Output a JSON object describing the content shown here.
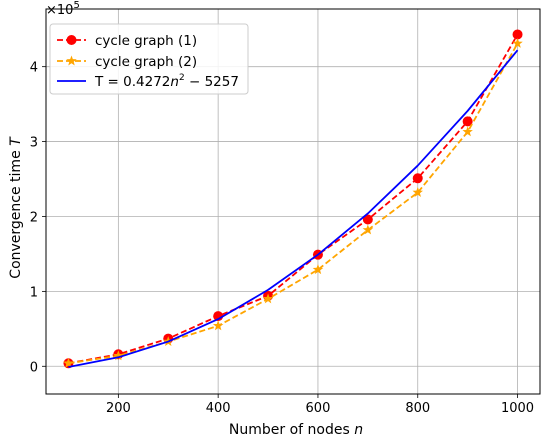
{
  "chart_data": {
    "type": "line",
    "xlabel": "Number of nodes",
    "xlabel_var": "n",
    "ylabel": "Convergence time",
    "ylabel_var": "T",
    "offset_text_base": "×10",
    "offset_text_exp": "5",
    "xlim": [
      55,
      1045
    ],
    "ylim": [
      -0.37,
      4.77
    ],
    "x_ticks": [
      200,
      400,
      600,
      800,
      1000
    ],
    "x_tick_labels": [
      "200",
      "400",
      "600",
      "800",
      "1000"
    ],
    "y_ticks": [
      0,
      1,
      2,
      3,
      4
    ],
    "y_tick_labels": [
      "0",
      "1",
      "2",
      "3",
      "4"
    ],
    "grid": true,
    "legend_position": "top-left",
    "series": [
      {
        "name": "cycle graph (1)",
        "color": "#ff0000",
        "line_style": "dashed",
        "marker": "circle",
        "x": [
          100,
          200,
          300,
          400,
          500,
          600,
          700,
          800,
          900,
          1000
        ],
        "values": [
          0.04,
          0.16,
          0.37,
          0.67,
          0.94,
          1.49,
          1.96,
          2.51,
          3.27,
          4.43
        ]
      },
      {
        "name": "cycle graph (2)",
        "color": "#ffa500",
        "line_style": "dashed",
        "marker": "star",
        "x": [
          100,
          200,
          300,
          400,
          500,
          600,
          700,
          800,
          900,
          1000
        ],
        "values": [
          0.04,
          0.14,
          0.33,
          0.54,
          0.9,
          1.29,
          1.82,
          2.32,
          3.13,
          4.31
        ]
      },
      {
        "name_prefix": "T = 0.4272",
        "name_var": "n",
        "name_exp": "2",
        "name_suffix": " − 5257",
        "color": "#0000ff",
        "line_style": "solid",
        "marker": "none",
        "x": [
          100,
          200,
          300,
          400,
          500,
          600,
          700,
          800,
          900,
          1000
        ],
        "values": [
          -0.01,
          0.12,
          0.33,
          0.63,
          1.02,
          1.49,
          2.04,
          2.68,
          3.41,
          4.22
        ]
      }
    ]
  }
}
